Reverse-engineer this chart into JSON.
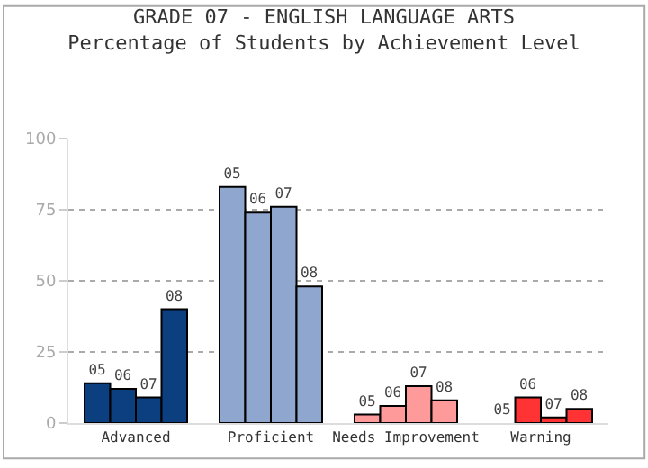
{
  "chart_data": {
    "type": "bar",
    "title": "GRADE 07 - ENGLISH LANGUAGE ARTS\nPercentage of Students by Achievement Level",
    "categories": [
      "Advanced",
      "Proficient",
      "Needs Improvement",
      "Warning"
    ],
    "series": [
      {
        "name": "05",
        "colors": [
          "#0b3f80",
          "#8fa7ce",
          "#ff9a9a",
          "#ff3333"
        ],
        "values": [
          14,
          83,
          3,
          0
        ]
      },
      {
        "name": "06",
        "colors": [
          "#0b3f80",
          "#8fa7ce",
          "#ff9a9a",
          "#ff3333"
        ],
        "values": [
          12,
          74,
          6,
          9
        ]
      },
      {
        "name": "07",
        "colors": [
          "#0b3f80",
          "#8fa7ce",
          "#ff9a9a",
          "#ff3333"
        ],
        "values": [
          9,
          76,
          13,
          2
        ]
      },
      {
        "name": "08",
        "colors": [
          "#0b3f80",
          "#8fa7ce",
          "#ff9a9a",
          "#ff3333"
        ],
        "values": [
          40,
          48,
          8,
          5
        ]
      }
    ],
    "ylim": [
      0,
      100
    ],
    "yticks": [
      0,
      25,
      50,
      75,
      100
    ],
    "grid": "y",
    "legend": false
  }
}
